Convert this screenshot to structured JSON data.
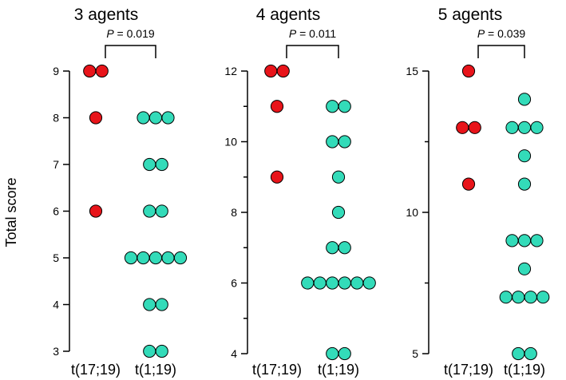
{
  "figure": {
    "ylabel": "Total score"
  },
  "chart_data": [
    {
      "type": "scatter",
      "title": "3 agents",
      "ylabel": "Total score",
      "categories": [
        "t(17;19)",
        "t(1;19)"
      ],
      "ylim": [
        3,
        9
      ],
      "yticks": [
        3,
        4,
        5,
        6,
        7,
        8,
        9
      ],
      "pvalue": {
        "prefix": "P",
        "text": " = 0.019"
      },
      "series": [
        {
          "name": "t(17;19)",
          "color": "#e8141a",
          "values": [
            9,
            9,
            8,
            6
          ]
        },
        {
          "name": "t(1;19)",
          "color": "#33dbb9",
          "values": [
            8,
            8,
            8,
            7,
            7,
            6,
            6,
            5,
            5,
            5,
            5,
            5,
            4,
            4,
            3,
            3
          ]
        }
      ]
    },
    {
      "type": "scatter",
      "title": "4 agents",
      "ylabel": "",
      "categories": [
        "t(17;19)",
        "t(1;19)"
      ],
      "ylim": [
        4,
        12
      ],
      "yticks": [
        4,
        6,
        8,
        10,
        12
      ],
      "pvalue": {
        "prefix": "P",
        "text": " = 0.011"
      },
      "series": [
        {
          "name": "t(17;19)",
          "color": "#e8141a",
          "values": [
            12,
            12,
            11,
            9
          ]
        },
        {
          "name": "t(1;19)",
          "color": "#33dbb9",
          "values": [
            11,
            11,
            10,
            10,
            9,
            8,
            7,
            7,
            6,
            6,
            6,
            6,
            6,
            6,
            4,
            4
          ]
        }
      ]
    },
    {
      "type": "scatter",
      "title": "5 agents",
      "ylabel": "",
      "categories": [
        "t(17;19)",
        "t(1;19)"
      ],
      "ylim": [
        5,
        15
      ],
      "yticks": [
        5,
        10,
        15
      ],
      "pvalue": {
        "prefix": "P",
        "text": " = 0.039"
      },
      "series": [
        {
          "name": "t(17;19)",
          "color": "#e8141a",
          "values": [
            15,
            13,
            13,
            11
          ]
        },
        {
          "name": "t(1;19)",
          "color": "#33dbb9",
          "values": [
            14,
            13,
            13,
            13,
            12,
            11,
            9,
            9,
            9,
            8,
            7,
            7,
            7,
            7,
            5,
            5
          ]
        }
      ]
    }
  ]
}
